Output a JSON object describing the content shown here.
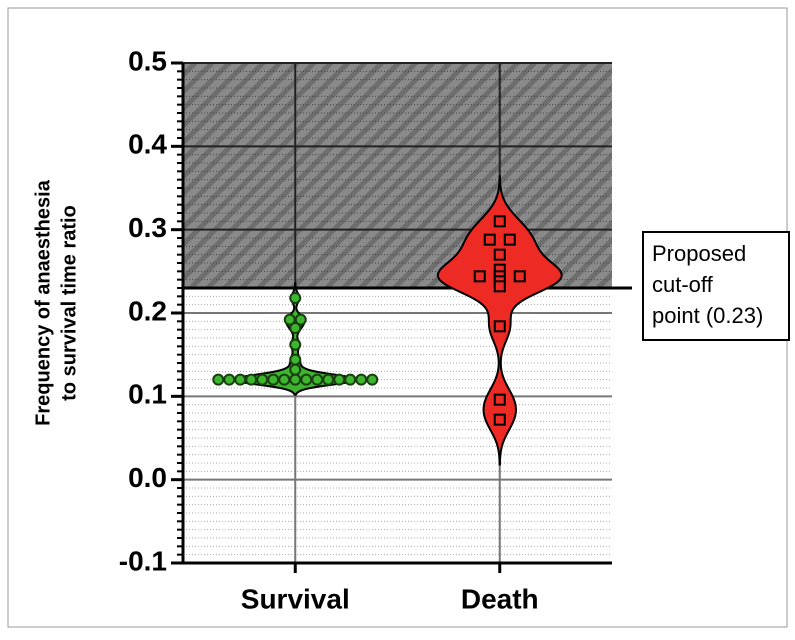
{
  "chart_data": {
    "type": "violin",
    "y_label": [
      "Frequency of anaesthesia",
      "to survival time ratio"
    ],
    "categories": [
      "Survival",
      "Death"
    ],
    "series": [
      {
        "name": "Survival",
        "color": "#3db52f",
        "marker": "circle",
        "values": [
          0.12,
          0.12,
          0.12,
          0.12,
          0.12,
          0.12,
          0.12,
          0.12,
          0.12,
          0.12,
          0.12,
          0.12,
          0.12,
          0.12,
          0.12,
          0.132,
          0.144,
          0.162,
          0.182,
          0.192,
          0.192,
          0.218
        ]
      },
      {
        "name": "Death",
        "color": "#ee2a24",
        "marker": "square",
        "values": [
          0.31,
          0.288,
          0.288,
          0.27,
          0.252,
          0.244,
          0.244,
          0.244,
          0.238,
          0.232,
          0.184,
          0.096,
          0.072
        ]
      }
    ],
    "ylim": [
      -0.1,
      0.5
    ],
    "yticks": [
      -0.1,
      {
        "value": 0,
        "label": "0.0"
      },
      0.1,
      0.2,
      0.3,
      0.4,
      0.5
    ],
    "grid": true,
    "cutoff": 0.23,
    "annotation": [
      "Proposed",
      "cut-off",
      "point (0.23)"
    ]
  }
}
